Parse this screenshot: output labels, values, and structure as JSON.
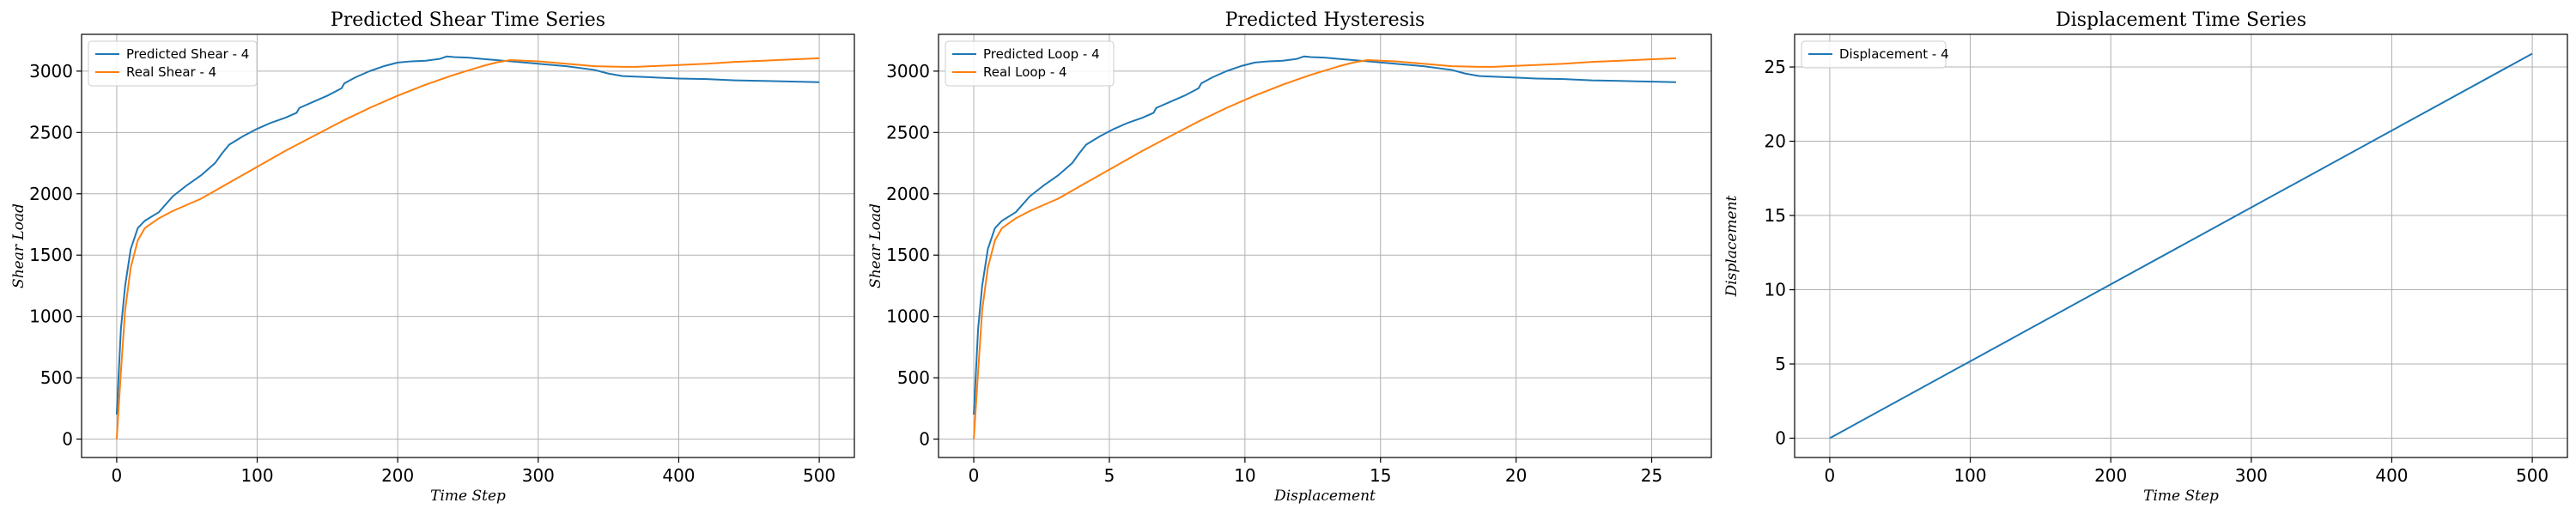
{
  "colors": {
    "blue": "#1f77b4",
    "orange": "#ff7f0e",
    "grid": "#b0b0b0"
  },
  "chart_data": [
    {
      "type": "line",
      "title": "Predicted Shear Time Series",
      "xlabel": "Time Step",
      "ylabel": "Shear Load",
      "xlim": [
        -25,
        525
      ],
      "ylim": [
        -150,
        3300
      ],
      "xticks": [
        0,
        100,
        200,
        300,
        400,
        500
      ],
      "yticks": [
        0,
        500,
        1000,
        1500,
        2000,
        2500,
        3000
      ],
      "grid": true,
      "legend_position": "top-left",
      "series": [
        {
          "name": "Predicted Shear - 4",
          "color": "#1f77b4",
          "x": [
            0,
            3,
            6,
            10,
            15,
            20,
            30,
            40,
            50,
            60,
            70,
            75,
            80,
            90,
            100,
            110,
            120,
            128,
            130,
            140,
            150,
            160,
            162,
            170,
            180,
            190,
            200,
            210,
            220,
            230,
            235,
            240,
            250,
            260,
            270,
            280,
            300,
            320,
            340,
            350,
            360,
            380,
            400,
            420,
            440,
            460,
            480,
            500
          ],
          "y": [
            200,
            900,
            1250,
            1550,
            1720,
            1780,
            1850,
            1980,
            2070,
            2150,
            2250,
            2330,
            2400,
            2470,
            2530,
            2580,
            2620,
            2660,
            2700,
            2750,
            2800,
            2860,
            2900,
            2950,
            3000,
            3040,
            3070,
            3080,
            3085,
            3100,
            3120,
            3115,
            3110,
            3100,
            3090,
            3080,
            3060,
            3040,
            3010,
            2980,
            2960,
            2950,
            2940,
            2935,
            2925,
            2920,
            2915,
            2910
          ]
        },
        {
          "name": "Real Shear - 4",
          "color": "#ff7f0e",
          "x": [
            0,
            3,
            6,
            10,
            15,
            20,
            30,
            40,
            50,
            60,
            80,
            100,
            120,
            140,
            160,
            180,
            200,
            220,
            240,
            260,
            270,
            280,
            300,
            320,
            340,
            360,
            370,
            380,
            400,
            420,
            440,
            460,
            480,
            500
          ],
          "y": [
            0,
            550,
            1050,
            1400,
            1620,
            1720,
            1800,
            1860,
            1910,
            1960,
            2090,
            2220,
            2350,
            2470,
            2590,
            2700,
            2800,
            2890,
            2970,
            3040,
            3070,
            3090,
            3080,
            3060,
            3040,
            3035,
            3035,
            3040,
            3050,
            3060,
            3075,
            3085,
            3095,
            3105
          ]
        }
      ]
    },
    {
      "type": "line",
      "title": "Predicted Hysteresis",
      "xlabel": "Displacement",
      "ylabel": "Shear Load",
      "xlim": [
        -1.3,
        27.2
      ],
      "ylim": [
        -150,
        3300
      ],
      "xticks": [
        0,
        5,
        10,
        15,
        20,
        25
      ],
      "yticks": [
        0,
        500,
        1000,
        1500,
        2000,
        2500,
        3000
      ],
      "grid": true,
      "legend_position": "top-left",
      "series": [
        {
          "name": "Predicted Loop - 4",
          "color": "#1f77b4",
          "x": [
            0,
            0.16,
            0.31,
            0.52,
            0.78,
            1.04,
            1.55,
            2.07,
            2.59,
            3.11,
            3.63,
            3.89,
            4.14,
            4.66,
            5.18,
            5.7,
            6.22,
            6.63,
            6.73,
            7.25,
            7.77,
            8.29,
            8.39,
            8.81,
            9.32,
            9.84,
            10.36,
            10.88,
            11.4,
            11.92,
            12.18,
            12.43,
            12.95,
            13.47,
            13.99,
            14.51,
            15.54,
            16.58,
            17.62,
            18.13,
            18.65,
            19.69,
            20.72,
            21.76,
            22.79,
            23.83,
            24.86,
            25.9
          ],
          "y": [
            200,
            900,
            1250,
            1550,
            1720,
            1780,
            1850,
            1980,
            2070,
            2150,
            2250,
            2330,
            2400,
            2470,
            2530,
            2580,
            2620,
            2660,
            2700,
            2750,
            2800,
            2860,
            2900,
            2950,
            3000,
            3040,
            3070,
            3080,
            3085,
            3100,
            3120,
            3115,
            3110,
            3100,
            3090,
            3080,
            3060,
            3040,
            3010,
            2980,
            2960,
            2950,
            2940,
            2935,
            2925,
            2920,
            2915,
            2910
          ]
        },
        {
          "name": "Real Loop - 4",
          "color": "#ff7f0e",
          "x": [
            0,
            0.16,
            0.31,
            0.52,
            0.78,
            1.04,
            1.55,
            2.07,
            2.59,
            3.11,
            4.14,
            5.18,
            6.22,
            7.25,
            8.29,
            9.32,
            10.36,
            11.4,
            12.43,
            13.47,
            13.99,
            14.51,
            15.54,
            16.58,
            17.62,
            18.65,
            19.17,
            19.69,
            20.72,
            21.76,
            22.79,
            23.83,
            24.86,
            25.9
          ],
          "y": [
            0,
            550,
            1050,
            1400,
            1620,
            1720,
            1800,
            1860,
            1910,
            1960,
            2090,
            2220,
            2350,
            2470,
            2590,
            2700,
            2800,
            2890,
            2970,
            3040,
            3070,
            3090,
            3080,
            3060,
            3040,
            3035,
            3035,
            3040,
            3050,
            3060,
            3075,
            3085,
            3095,
            3105
          ]
        }
      ]
    },
    {
      "type": "line",
      "title": "Displacement Time Series",
      "xlabel": "Time Step",
      "ylabel": "Displacement",
      "xlim": [
        -25,
        525
      ],
      "ylim": [
        -1.3,
        27.2
      ],
      "xticks": [
        0,
        100,
        200,
        300,
        400,
        500
      ],
      "yticks": [
        0,
        5,
        10,
        15,
        20,
        25
      ],
      "grid": true,
      "legend_position": "top-left",
      "series": [
        {
          "name": "Displacement - 4",
          "color": "#1f77b4",
          "x": [
            0,
            500
          ],
          "y": [
            0,
            25.9
          ]
        }
      ]
    }
  ]
}
